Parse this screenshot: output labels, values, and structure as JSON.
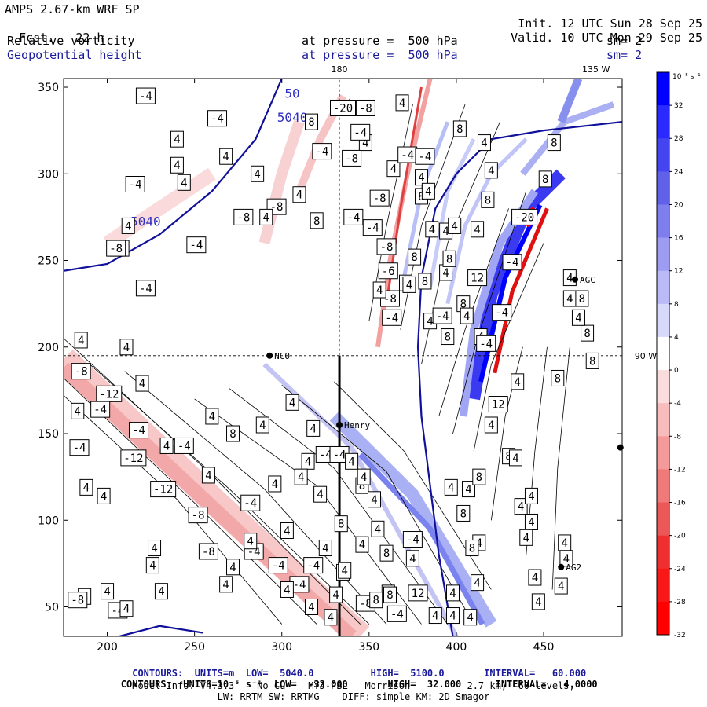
{
  "header": {
    "model": "AMPS 2.67-km WRF SP",
    "fcst_label": "Fcst.",
    "fcst_value": "22 h",
    "init_label": "Init.",
    "init_value": "12 UTC Sun 28 Sep 25",
    "valid_label": "Valid.",
    "valid_value": "10 UTC Mon 29 Sep 25",
    "field1": "Relative vorticity",
    "field2": "Geopotential height",
    "pressure1": "at pressure =  500 hPa",
    "pressure2": "at pressure =  500 hPa",
    "sm1": "sm= 2",
    "sm2": "sm= 2"
  },
  "footer": {
    "line1": "CONTOURS:  UNITS=m  LOW=  5040.0          HIGH=  5100.0       INTERVAL=   60.000",
    "line2": "CONTOURS:  UNITS=10⁻⁵ s⁻¹  LOW=  -32.000       HIGH=  32.000      INTERVAL=   4.0000",
    "line3": "Model Info: V4.3.3    No Cu    MYJ PBL   Morrison          2.7 km,  60 levels,",
    "line4": "LW: RRTM SW: RRTMG    DIFF: simple KM: 2D Smagor"
  },
  "chart_data": {
    "type": "heatmap",
    "xlim": [
      175,
      495
    ],
    "ylim": [
      33,
      355
    ],
    "x_ticks": [
      200,
      250,
      300,
      350,
      400,
      450
    ],
    "y_ticks": [
      50,
      100,
      150,
      200,
      250,
      300,
      350
    ],
    "colorbar": {
      "units": "10⁻⁵ s⁻¹",
      "ticks": [
        "32",
        "28",
        "24",
        "20",
        "16",
        "12",
        "8",
        "4",
        "0",
        "-4",
        "-8",
        "-12",
        "-16",
        "-20",
        "-24",
        "-28",
        "-32"
      ],
      "colors": [
        "#0000ff",
        "#2a2aff",
        "#4444f0",
        "#6060e8",
        "#7e7eee",
        "#9c9cf2",
        "#babaf7",
        "#d8d8fb",
        "#ffffff",
        "#fbdcdc",
        "#f8bcbc",
        "#f49a9a",
        "#f07a7a",
        "#ec5858",
        "#f03030",
        "#f81818",
        "#ff0000"
      ]
    },
    "grid_annotations": [
      {
        "label": "180",
        "x": 333
      },
      {
        "label": "135 W",
        "x": 480
      },
      {
        "label": "90 W",
        "y": 195
      }
    ],
    "stations": [
      {
        "name": "NCO",
        "x": 293,
        "y": 195
      },
      {
        "name": "Henry",
        "x": 333,
        "y": 155
      },
      {
        "name": "AGC",
        "x": 468,
        "y": 239
      },
      {
        "name": "AG2",
        "x": 460,
        "y": 73
      },
      {
        "name": "",
        "x": 494,
        "y": 142
      }
    ],
    "height_contours": [
      {
        "label": "5040",
        "x": 222,
        "y": 270
      },
      {
        "label": "50",
        "x": 306,
        "y": 344
      },
      {
        "label": "5040",
        "x": 306,
        "y": 330
      }
    ],
    "vorticity_labels": [
      {
        "v": "-4",
        "x": 222,
        "y": 345
      },
      {
        "v": "-4",
        "x": 263,
        "y": 332
      },
      {
        "v": "4",
        "x": 240,
        "y": 320
      },
      {
        "v": "4",
        "x": 268,
        "y": 310
      },
      {
        "v": "4",
        "x": 240,
        "y": 305
      },
      {
        "v": "-4",
        "x": 216,
        "y": 294
      },
      {
        "v": "4",
        "x": 212,
        "y": 270
      },
      {
        "v": "-8",
        "x": 207,
        "y": 257
      },
      {
        "v": "4",
        "x": 244,
        "y": 295
      },
      {
        "v": "4",
        "x": 286,
        "y": 300
      },
      {
        "v": "-8",
        "x": 297,
        "y": 281
      },
      {
        "v": "-8",
        "x": 278,
        "y": 275
      },
      {
        "v": "4",
        "x": 291,
        "y": 275
      },
      {
        "v": "-4",
        "x": 251,
        "y": 259
      },
      {
        "v": "-8",
        "x": 205,
        "y": 257
      },
      {
        "v": "-4",
        "x": 222,
        "y": 234
      },
      {
        "v": "-20",
        "x": 335,
        "y": 338
      },
      {
        "v": "-8",
        "x": 348,
        "y": 338
      },
      {
        "v": "4",
        "x": 348,
        "y": 318
      },
      {
        "v": "-4",
        "x": 323,
        "y": 313
      },
      {
        "v": "-4",
        "x": 345,
        "y": 324
      },
      {
        "v": "8",
        "x": 317,
        "y": 330
      },
      {
        "v": "-8",
        "x": 340,
        "y": 309
      },
      {
        "v": "4",
        "x": 310,
        "y": 288
      },
      {
        "v": "8",
        "x": 320,
        "y": 273
      },
      {
        "v": "-4",
        "x": 341,
        "y": 275
      },
      {
        "v": "-8",
        "x": 356,
        "y": 286
      },
      {
        "v": "-4",
        "x": 352,
        "y": 269
      },
      {
        "v": "-8",
        "x": 360,
        "y": 258
      },
      {
        "v": "4",
        "x": 364,
        "y": 303
      },
      {
        "v": "-4",
        "x": 372,
        "y": 311
      },
      {
        "v": "4",
        "x": 369,
        "y": 341
      },
      {
        "v": "4",
        "x": 380,
        "y": 298
      },
      {
        "v": "-4",
        "x": 382,
        "y": 310
      },
      {
        "v": "8",
        "x": 380,
        "y": 287
      },
      {
        "v": "8",
        "x": 376,
        "y": 252
      },
      {
        "v": "8",
        "x": 371,
        "y": 237
      },
      {
        "v": "4",
        "x": 384,
        "y": 290
      },
      {
        "v": "-6",
        "x": 361,
        "y": 244
      },
      {
        "v": "-8",
        "x": 362,
        "y": 228
      },
      {
        "v": "4",
        "x": 356,
        "y": 233
      },
      {
        "v": "-4",
        "x": 363,
        "y": 217
      },
      {
        "v": "4",
        "x": 373,
        "y": 236
      },
      {
        "v": "4",
        "x": 385,
        "y": 215
      },
      {
        "v": "8",
        "x": 395,
        "y": 206
      },
      {
        "v": "4",
        "x": 394,
        "y": 243
      },
      {
        "v": "4",
        "x": 386,
        "y": 268
      },
      {
        "v": "8",
        "x": 396,
        "y": 251
      },
      {
        "v": "8",
        "x": 382,
        "y": 238
      },
      {
        "v": "4",
        "x": 394,
        "y": 267
      },
      {
        "v": "-4",
        "x": 392,
        "y": 218
      },
      {
        "v": "8",
        "x": 404,
        "y": 225
      },
      {
        "v": "4",
        "x": 414,
        "y": 206
      },
      {
        "v": "8",
        "x": 418,
        "y": 285
      },
      {
        "v": "-20",
        "x": 439,
        "y": 275
      },
      {
        "v": "-4",
        "x": 432,
        "y": 249
      },
      {
        "v": "12",
        "x": 412,
        "y": 240
      },
      {
        "v": "-4",
        "x": 426,
        "y": 220
      },
      {
        "v": "-4",
        "x": 417,
        "y": 202
      },
      {
        "v": "4",
        "x": 406,
        "y": 218
      },
      {
        "v": "4",
        "x": 435,
        "y": 180
      },
      {
        "v": "8",
        "x": 456,
        "y": 318
      },
      {
        "v": "4",
        "x": 420,
        "y": 302
      },
      {
        "v": "4",
        "x": 416,
        "y": 318
      },
      {
        "v": "8",
        "x": 402,
        "y": 326
      },
      {
        "v": "4",
        "x": 399,
        "y": 270
      },
      {
        "v": "4",
        "x": 412,
        "y": 268
      },
      {
        "v": "8",
        "x": 451,
        "y": 297
      },
      {
        "v": "4",
        "x": 465,
        "y": 228
      },
      {
        "v": "8",
        "x": 475,
        "y": 208
      },
      {
        "v": "8",
        "x": 478,
        "y": 192
      },
      {
        "v": "4",
        "x": 470,
        "y": 217
      },
      {
        "v": "4",
        "x": 465,
        "y": 240
      },
      {
        "v": "8",
        "x": 458,
        "y": 182
      },
      {
        "v": "8",
        "x": 472,
        "y": 228
      },
      {
        "v": "4",
        "x": 185,
        "y": 204
      },
      {
        "v": "-8",
        "x": 185,
        "y": 186
      },
      {
        "v": "4",
        "x": 211,
        "y": 200
      },
      {
        "v": "4",
        "x": 220,
        "y": 179
      },
      {
        "v": "-12",
        "x": 201,
        "y": 173
      },
      {
        "v": "-4",
        "x": 196,
        "y": 164
      },
      {
        "v": "4",
        "x": 183,
        "y": 163
      },
      {
        "v": "-4",
        "x": 184,
        "y": 142
      },
      {
        "v": "-4",
        "x": 218,
        "y": 152
      },
      {
        "v": "-12",
        "x": 215,
        "y": 136
      },
      {
        "v": "4",
        "x": 234,
        "y": 143
      },
      {
        "v": "-4",
        "x": 244,
        "y": 143
      },
      {
        "v": "4",
        "x": 260,
        "y": 160
      },
      {
        "v": "8",
        "x": 272,
        "y": 150
      },
      {
        "v": "4",
        "x": 289,
        "y": 155
      },
      {
        "v": "4",
        "x": 306,
        "y": 168
      },
      {
        "v": "4",
        "x": 318,
        "y": 153
      },
      {
        "v": "-4",
        "x": 325,
        "y": 138
      },
      {
        "v": "-4",
        "x": 333,
        "y": 138
      },
      {
        "v": "4",
        "x": 340,
        "y": 134
      },
      {
        "v": "-12",
        "x": 232,
        "y": 118
      },
      {
        "v": "4",
        "x": 188,
        "y": 119
      },
      {
        "v": "4",
        "x": 198,
        "y": 114
      },
      {
        "v": "-8",
        "x": 252,
        "y": 103
      },
      {
        "v": "-4",
        "x": 282,
        "y": 110
      },
      {
        "v": "4",
        "x": 258,
        "y": 126
      },
      {
        "v": "4",
        "x": 296,
        "y": 121
      },
      {
        "v": "4",
        "x": 315,
        "y": 134
      },
      {
        "v": "4",
        "x": 311,
        "y": 125
      },
      {
        "v": "4",
        "x": 322,
        "y": 115
      },
      {
        "v": "8",
        "x": 346,
        "y": 120
      },
      {
        "v": "4",
        "x": 347,
        "y": 125
      },
      {
        "v": "4",
        "x": 353,
        "y": 112
      },
      {
        "v": "8",
        "x": 334,
        "y": 98
      },
      {
        "v": "-8",
        "x": 258,
        "y": 82
      },
      {
        "v": "-4",
        "x": 284,
        "y": 82
      },
      {
        "v": "4",
        "x": 227,
        "y": 84
      },
      {
        "v": "4",
        "x": 226,
        "y": 74
      },
      {
        "v": "4",
        "x": 282,
        "y": 88
      },
      {
        "v": "4",
        "x": 303,
        "y": 94
      },
      {
        "v": "-4",
        "x": 298,
        "y": 74
      },
      {
        "v": "4",
        "x": 346,
        "y": 86
      },
      {
        "v": "4",
        "x": 355,
        "y": 95
      },
      {
        "v": "4",
        "x": 325,
        "y": 84
      },
      {
        "v": "8",
        "x": 335,
        "y": 70
      },
      {
        "v": "-4",
        "x": 375,
        "y": 89
      },
      {
        "v": "8",
        "x": 360,
        "y": 81
      },
      {
        "v": "4",
        "x": 336,
        "y": 71
      },
      {
        "v": "-4",
        "x": 318,
        "y": 74
      },
      {
        "v": "4",
        "x": 272,
        "y": 73
      },
      {
        "v": "-4",
        "x": 310,
        "y": 63
      },
      {
        "v": "4",
        "x": 268,
        "y": 63
      },
      {
        "v": "4",
        "x": 303,
        "y": 60
      },
      {
        "v": "4",
        "x": 361,
        "y": 58
      },
      {
        "v": "8",
        "x": 362,
        "y": 57
      },
      {
        "v": "12",
        "x": 378,
        "y": 58
      },
      {
        "v": "4",
        "x": 375,
        "y": 78
      },
      {
        "v": "4",
        "x": 331,
        "y": 57
      },
      {
        "v": "4",
        "x": 317,
        "y": 50
      },
      {
        "v": "4",
        "x": 328,
        "y": 44
      },
      {
        "v": "-8",
        "x": 348,
        "y": 52
      },
      {
        "v": "8",
        "x": 354,
        "y": 54
      },
      {
        "v": "-4",
        "x": 366,
        "y": 46
      },
      {
        "v": "4",
        "x": 388,
        "y": 45
      },
      {
        "v": "4",
        "x": 398,
        "y": 45
      },
      {
        "v": "4",
        "x": 408,
        "y": 44
      },
      {
        "v": "4",
        "x": 187,
        "y": 56
      },
      {
        "v": "-8",
        "x": 183,
        "y": 54
      },
      {
        "v": "4",
        "x": 200,
        "y": 59
      },
      {
        "v": "-4",
        "x": 206,
        "y": 48
      },
      {
        "v": "4",
        "x": 211,
        "y": 49
      },
      {
        "v": "4",
        "x": 231,
        "y": 59
      },
      {
        "v": "4",
        "x": 398,
        "y": 58
      },
      {
        "v": "4",
        "x": 413,
        "y": 87
      },
      {
        "v": "8",
        "x": 409,
        "y": 84
      },
      {
        "v": "4",
        "x": 407,
        "y": 118
      },
      {
        "v": "8",
        "x": 404,
        "y": 104
      },
      {
        "v": "4",
        "x": 397,
        "y": 119
      },
      {
        "v": "8",
        "x": 413,
        "y": 125
      },
      {
        "v": "4",
        "x": 420,
        "y": 155
      },
      {
        "v": "12",
        "x": 424,
        "y": 167
      },
      {
        "v": "8",
        "x": 430,
        "y": 137
      },
      {
        "v": "4",
        "x": 434,
        "y": 136
      },
      {
        "v": "4",
        "x": 437,
        "y": 108
      },
      {
        "v": "4",
        "x": 443,
        "y": 99
      },
      {
        "v": "4",
        "x": 443,
        "y": 114
      },
      {
        "v": "4",
        "x": 440,
        "y": 90
      },
      {
        "v": "4",
        "x": 462,
        "y": 87
      },
      {
        "v": "4",
        "x": 463,
        "y": 78
      },
      {
        "v": "4",
        "x": 460,
        "y": 62
      },
      {
        "v": "4",
        "x": 445,
        "y": 67
      },
      {
        "v": "4",
        "x": 447,
        "y": 53
      },
      {
        "v": "4",
        "x": 412,
        "y": 64
      }
    ]
  }
}
